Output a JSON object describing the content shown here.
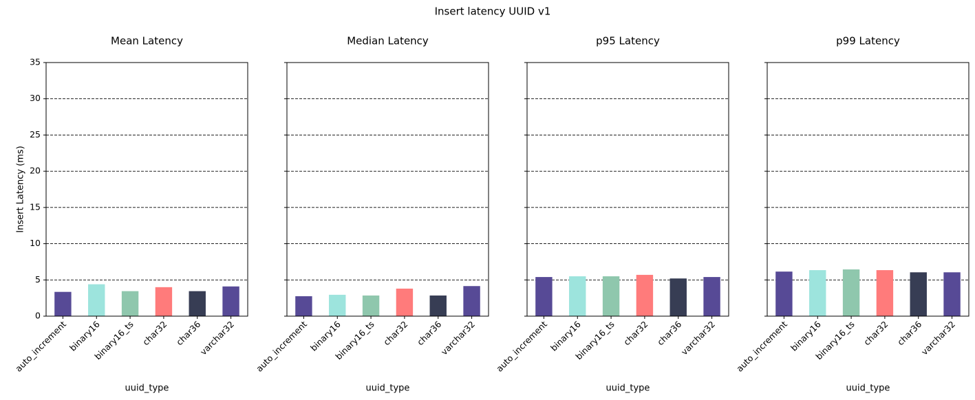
{
  "title": "Insert latency UUID v1",
  "chart_data": [
    {
      "type": "bar",
      "title": "Mean Latency",
      "xlabel": "uuid_type",
      "ylabel": "Insert Latency (ms)",
      "categories": [
        "auto_increment",
        "binary16",
        "binary16_ts",
        "char32",
        "char36",
        "varchar32"
      ],
      "values": [
        3.35,
        4.4,
        3.45,
        4.0,
        3.45,
        4.1
      ],
      "colors": [
        "#574a96",
        "#9de4dd",
        "#8fc7ad",
        "#ff7b7b",
        "#373d54",
        "#574a96"
      ],
      "ylim": [
        0,
        35
      ],
      "yticks": [
        0,
        5,
        10,
        15,
        20,
        25,
        30,
        35
      ],
      "grid": true
    },
    {
      "type": "bar",
      "title": "Median Latency",
      "xlabel": "uuid_type",
      "categories": [
        "auto_increment",
        "binary16",
        "binary16_ts",
        "char32",
        "char36",
        "varchar32"
      ],
      "values": [
        2.75,
        2.95,
        2.85,
        3.8,
        2.85,
        4.15
      ],
      "colors": [
        "#574a96",
        "#9de4dd",
        "#8fc7ad",
        "#ff7b7b",
        "#373d54",
        "#574a96"
      ],
      "ylim": [
        0,
        35
      ],
      "yticks": [
        0,
        5,
        10,
        15,
        20,
        25,
        30,
        35
      ],
      "grid": true
    },
    {
      "type": "bar",
      "title": "p95 Latency",
      "xlabel": "uuid_type",
      "categories": [
        "auto_increment",
        "binary16",
        "binary16_ts",
        "char32",
        "char36",
        "varchar32"
      ],
      "values": [
        5.4,
        5.5,
        5.5,
        5.7,
        5.2,
        5.4
      ],
      "colors": [
        "#574a96",
        "#9de4dd",
        "#8fc7ad",
        "#ff7b7b",
        "#373d54",
        "#574a96"
      ],
      "ylim": [
        0,
        35
      ],
      "yticks": [
        0,
        5,
        10,
        15,
        20,
        25,
        30,
        35
      ],
      "grid": true
    },
    {
      "type": "bar",
      "title": "p99 Latency",
      "xlabel": "uuid_type",
      "categories": [
        "auto_increment",
        "binary16",
        "binary16_ts",
        "char32",
        "char36",
        "varchar32"
      ],
      "values": [
        6.15,
        6.35,
        6.45,
        6.35,
        6.05,
        6.05
      ],
      "colors": [
        "#574a96",
        "#9de4dd",
        "#8fc7ad",
        "#ff7b7b",
        "#373d54",
        "#574a96"
      ],
      "ylim": [
        0,
        35
      ],
      "yticks": [
        0,
        5,
        10,
        15,
        20,
        25,
        30,
        35
      ],
      "grid": true
    }
  ]
}
